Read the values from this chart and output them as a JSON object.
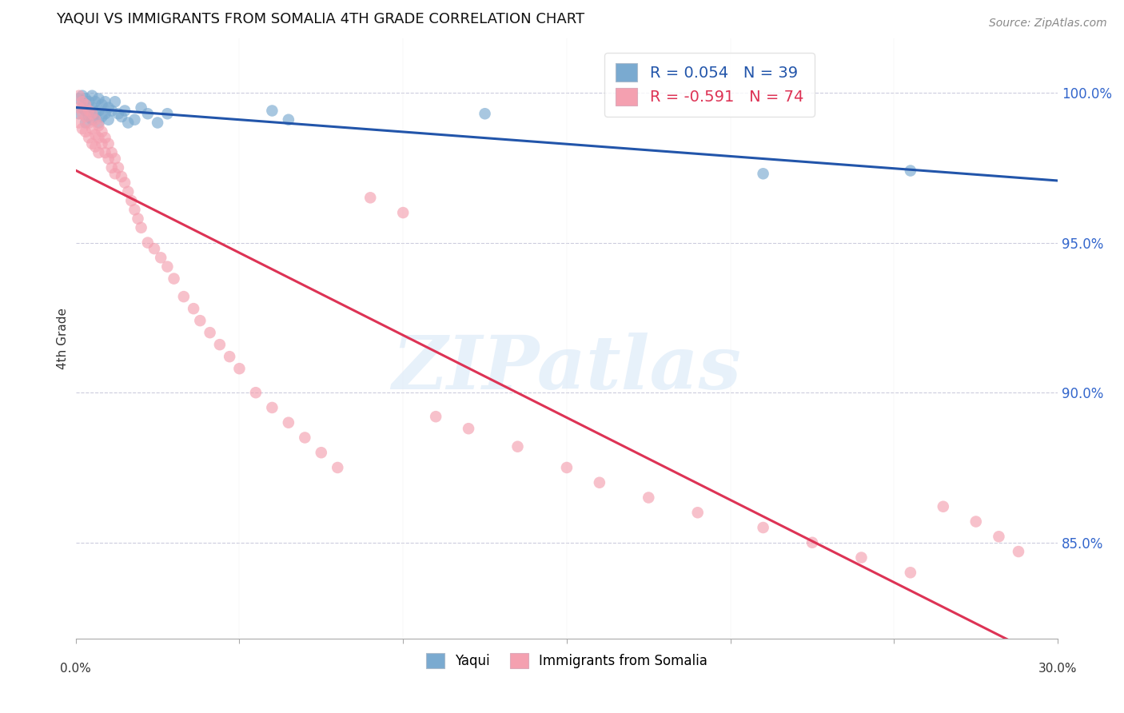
{
  "title": "YAQUI VS IMMIGRANTS FROM SOMALIA 4TH GRADE CORRELATION CHART",
  "source": "Source: ZipAtlas.com",
  "ylabel": "4th Grade",
  "ytick_labels": [
    "100.0%",
    "95.0%",
    "90.0%",
    "85.0%"
  ],
  "ytick_values": [
    1.0,
    0.95,
    0.9,
    0.85
  ],
  "xlim": [
    0.0,
    0.3
  ],
  "ylim": [
    0.818,
    1.018
  ],
  "blue_color": "#7AAAD0",
  "pink_color": "#F4A0B0",
  "line_blue": "#2255AA",
  "line_pink": "#DD3355",
  "watermark_text": "ZIPatlas",
  "blue_R": 0.054,
  "blue_N": 39,
  "pink_R": -0.591,
  "pink_N": 74,
  "blue_x": [
    0.001,
    0.001,
    0.002,
    0.002,
    0.003,
    0.003,
    0.003,
    0.004,
    0.004,
    0.005,
    0.005,
    0.005,
    0.006,
    0.006,
    0.007,
    0.007,
    0.007,
    0.008,
    0.008,
    0.009,
    0.009,
    0.01,
    0.01,
    0.011,
    0.012,
    0.013,
    0.014,
    0.015,
    0.016,
    0.018,
    0.02,
    0.022,
    0.025,
    0.028,
    0.06,
    0.065,
    0.125,
    0.21,
    0.255
  ],
  "blue_y": [
    0.998,
    0.993,
    0.999,
    0.995,
    0.998,
    0.994,
    0.99,
    0.997,
    0.992,
    0.999,
    0.995,
    0.991,
    0.997,
    0.993,
    0.998,
    0.994,
    0.99,
    0.996,
    0.992,
    0.997,
    0.993,
    0.995,
    0.991,
    0.994,
    0.997,
    0.993,
    0.992,
    0.994,
    0.99,
    0.991,
    0.995,
    0.993,
    0.99,
    0.993,
    0.994,
    0.991,
    0.993,
    0.973,
    0.974
  ],
  "pink_x": [
    0.001,
    0.001,
    0.001,
    0.002,
    0.002,
    0.002,
    0.003,
    0.003,
    0.003,
    0.004,
    0.004,
    0.004,
    0.005,
    0.005,
    0.005,
    0.006,
    0.006,
    0.006,
    0.007,
    0.007,
    0.007,
    0.008,
    0.008,
    0.009,
    0.009,
    0.01,
    0.01,
    0.011,
    0.011,
    0.012,
    0.012,
    0.013,
    0.014,
    0.015,
    0.016,
    0.017,
    0.018,
    0.019,
    0.02,
    0.022,
    0.024,
    0.026,
    0.028,
    0.03,
    0.033,
    0.036,
    0.038,
    0.041,
    0.044,
    0.047,
    0.05,
    0.055,
    0.06,
    0.065,
    0.07,
    0.075,
    0.08,
    0.09,
    0.1,
    0.11,
    0.12,
    0.135,
    0.15,
    0.16,
    0.175,
    0.19,
    0.21,
    0.225,
    0.24,
    0.255,
    0.265,
    0.275,
    0.282,
    0.288
  ],
  "pink_y": [
    0.999,
    0.995,
    0.99,
    0.997,
    0.993,
    0.988,
    0.996,
    0.992,
    0.987,
    0.994,
    0.99,
    0.985,
    0.993,
    0.988,
    0.983,
    0.991,
    0.986,
    0.982,
    0.989,
    0.985,
    0.98,
    0.987,
    0.983,
    0.985,
    0.98,
    0.983,
    0.978,
    0.98,
    0.975,
    0.978,
    0.973,
    0.975,
    0.972,
    0.97,
    0.967,
    0.964,
    0.961,
    0.958,
    0.955,
    0.95,
    0.948,
    0.945,
    0.942,
    0.938,
    0.932,
    0.928,
    0.924,
    0.92,
    0.916,
    0.912,
    0.908,
    0.9,
    0.895,
    0.89,
    0.885,
    0.88,
    0.875,
    0.965,
    0.96,
    0.892,
    0.888,
    0.882,
    0.875,
    0.87,
    0.865,
    0.86,
    0.855,
    0.85,
    0.845,
    0.84,
    0.862,
    0.857,
    0.852,
    0.847
  ]
}
